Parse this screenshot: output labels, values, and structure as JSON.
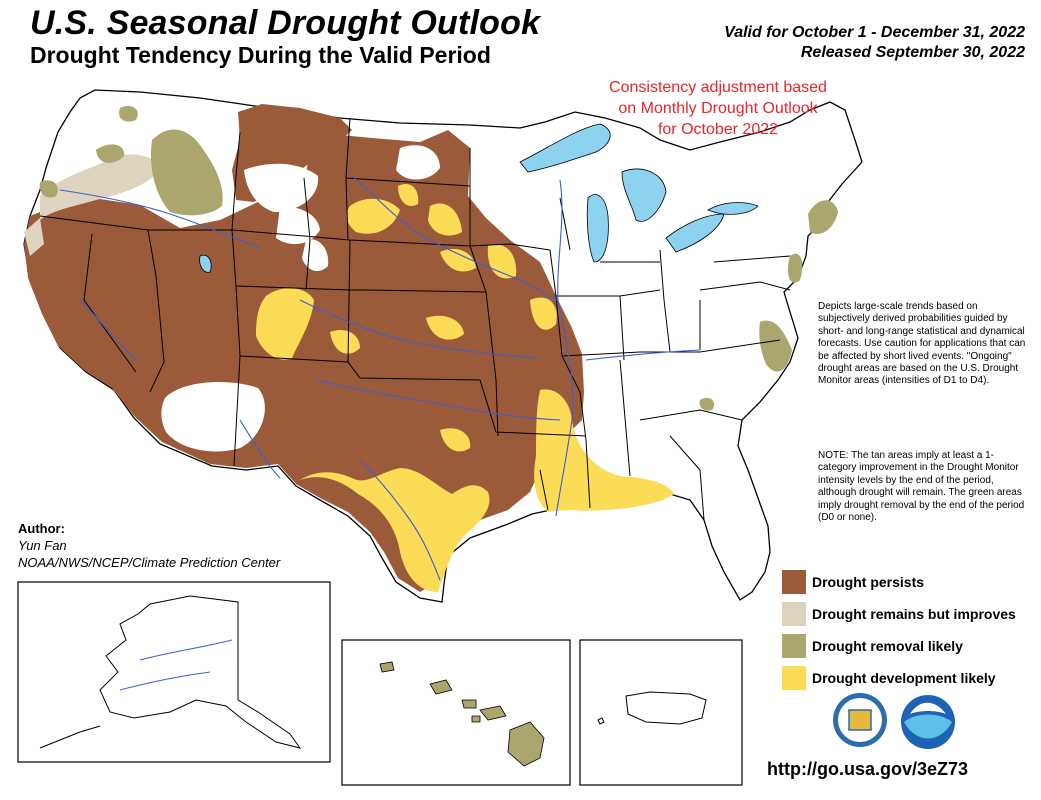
{
  "header": {
    "title": "U.S. Seasonal Drought Outlook",
    "subtitle": "Drought Tendency During the Valid Period",
    "valid_period": "Valid for October 1 - December 31, 2022",
    "released": "Released September 30, 2022"
  },
  "consistency_note": "Consistency adjustment based on Monthly Drought Outlook for October 2022",
  "description": "Depicts large-scale trends based on subjectively derived probabilities guided by short- and long-range statistical and dynamical forecasts. Use caution for applications that can be affected by short lived events. \"Ongoing\" drought areas are based on the U.S. Drought Monitor areas (intensities of D1 to D4).",
  "note": "NOTE: The tan areas imply at least a 1-category improvement in the Drought Monitor intensity levels by the end of the period, although drought will remain. The green areas imply drought removal by the end of the period (D0 or none).",
  "author": {
    "label": "Author:",
    "name": "Yun Fan",
    "org": "NOAA/NWS/NCEP/Climate Prediction Center"
  },
  "legend": [
    {
      "label": "Drought persists",
      "color": "#9b5b3a"
    },
    {
      "label": "Drought remains but improves",
      "color": "#ddd3bf"
    },
    {
      "label": "Drought removal likely",
      "color": "#aaa66e"
    },
    {
      "label": "Drought development likely",
      "color": "#fcdb56"
    }
  ],
  "colors": {
    "water": "#8dd3ef",
    "rivers": "#3a5fd0",
    "boundaries": "#000000",
    "consistency_note_text": "#e8262b"
  },
  "logos": [
    "dept-of-commerce-seal",
    "noaa-logo"
  ],
  "url": "http://go.usa.gov/3eZ73"
}
